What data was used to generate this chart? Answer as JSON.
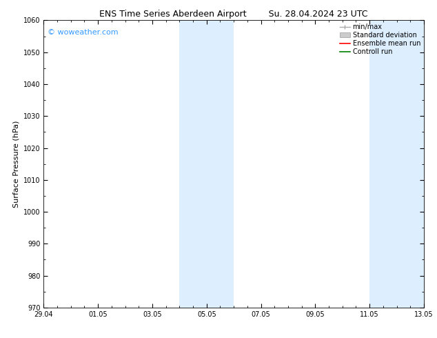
{
  "title_left": "ENS Time Series Aberdeen Airport",
  "title_right": "Su. 28.04.2024 23 UTC",
  "ylabel": "Surface Pressure (hPa)",
  "ylim": [
    970,
    1060
  ],
  "yticks": [
    970,
    980,
    990,
    1000,
    1010,
    1020,
    1030,
    1040,
    1050,
    1060
  ],
  "xlim_start": 0.0,
  "xlim_end": 14.0,
  "xtick_positions": [
    0,
    2,
    4,
    6,
    8,
    10,
    12,
    14
  ],
  "xtick_labels": [
    "29.04",
    "01.05",
    "03.05",
    "05.05",
    "07.05",
    "09.05",
    "11.05",
    "13.05"
  ],
  "shaded_bands": [
    {
      "x_start": 5.0,
      "x_end": 7.0
    },
    {
      "x_start": 12.0,
      "x_end": 14.0
    }
  ],
  "shaded_color": "#ddeeff",
  "background_color": "#ffffff",
  "watermark_text": "© woweather.com",
  "watermark_color": "#3399ff",
  "legend_items": [
    {
      "label": "min/max",
      "color": "#aaaaaa",
      "style": "line_with_caps"
    },
    {
      "label": "Standard deviation",
      "color": "#cccccc",
      "style": "filled"
    },
    {
      "label": "Ensemble mean run",
      "color": "#ff0000",
      "style": "line"
    },
    {
      "label": "Controll run",
      "color": "#008000",
      "style": "line"
    }
  ],
  "title_fontsize": 9,
  "axis_label_fontsize": 8,
  "tick_fontsize": 7,
  "watermark_fontsize": 8,
  "legend_fontsize": 7
}
